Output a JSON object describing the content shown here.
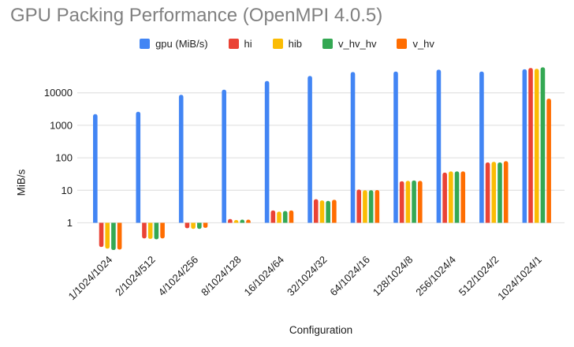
{
  "chart_data": {
    "type": "bar",
    "title": "GPU Packing Performance (OpenMPI 4.0.5)",
    "xlabel": "Configuration",
    "ylabel": "MiB/s",
    "y_scale": "log",
    "yticks": [
      1,
      10,
      100,
      1000,
      10000
    ],
    "ylim": [
      0.1,
      100000
    ],
    "grid": true,
    "legend_position": "top",
    "background_color": "#ffffff",
    "title_color": "#808080",
    "gridline_color": "#e4e4e4",
    "categories": [
      "1/1024/1024",
      "2/1024/512",
      "4/1024/256",
      "8/1024/128",
      "16/1024/64",
      "32/1024/32",
      "64/1024/16",
      "128/1024/8",
      "256/1024/4",
      "512/1024/2",
      "1024/1024/1"
    ],
    "series": [
      {
        "name": "gpu (MiB/s)",
        "color": "#4285F4",
        "values": [
          2200,
          2600,
          8700,
          12500,
          23000,
          33000,
          43500,
          45000,
          51500,
          45000,
          53000
        ]
      },
      {
        "name": "hi",
        "color": "#EA4335",
        "values": [
          0.18,
          0.33,
          0.68,
          1.3,
          2.4,
          5.3,
          10.5,
          19,
          35,
          72,
          58000
        ]
      },
      {
        "name": "hib",
        "color": "#FBBC04",
        "values": [
          0.16,
          0.32,
          0.65,
          1.22,
          2.2,
          4.9,
          10,
          19.5,
          38,
          75,
          55000
        ]
      },
      {
        "name": "v_hv_hv",
        "color": "#34A853",
        "values": [
          0.145,
          0.31,
          0.65,
          1.25,
          2.3,
          4.7,
          10,
          20,
          38,
          72,
          61000
        ]
      },
      {
        "name": "v_hv",
        "color": "#FF6D01",
        "values": [
          0.15,
          0.33,
          0.7,
          1.25,
          2.4,
          5.1,
          10.2,
          19.5,
          38,
          79,
          6600
        ]
      }
    ]
  }
}
